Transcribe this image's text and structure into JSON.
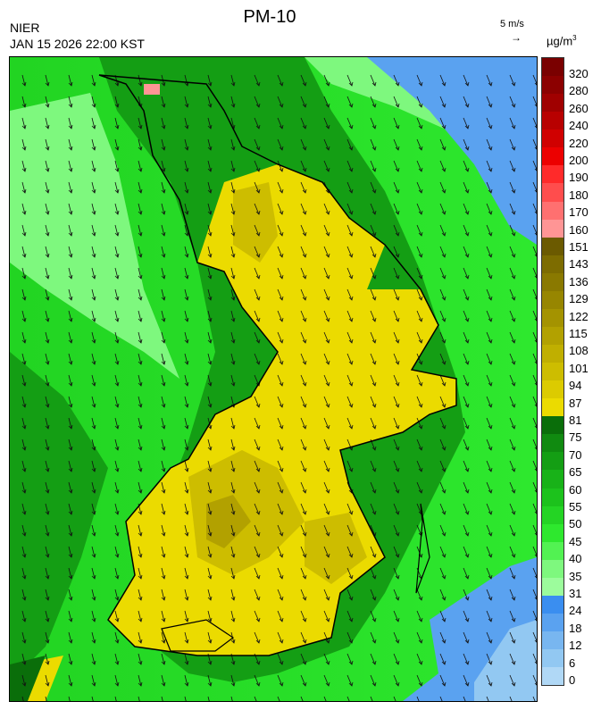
{
  "header": {
    "title": "PM-10",
    "agency": "NIER",
    "timestamp": "JAN 15 2026 22:00 KST",
    "wind_reference": "5 m/s",
    "wind_arrow": "→",
    "unit_base": "µg/m",
    "unit_exp": "3"
  },
  "legend": {
    "labels": [
      "320",
      "280",
      "260",
      "240",
      "220",
      "200",
      "190",
      "180",
      "170",
      "160",
      "151",
      "143",
      "136",
      "129",
      "122",
      "115",
      "108",
      "101",
      "94",
      "87",
      "81",
      "75",
      "70",
      "65",
      "60",
      "55",
      "50",
      "45",
      "40",
      "35",
      "31",
      "24",
      "18",
      "12",
      "6",
      "0"
    ],
    "colors": [
      "#7a0000",
      "#8c0000",
      "#a00000",
      "#b80000",
      "#d00000",
      "#ec0000",
      "#ff2a2a",
      "#ff4d4d",
      "#ff7070",
      "#ff9595",
      "#6b5a00",
      "#7d6c00",
      "#8a7900",
      "#978600",
      "#a49300",
      "#b2a100",
      "#c0af00",
      "#cdbd00",
      "#dccb00",
      "#ebdb00",
      "#0a6e0a",
      "#108a10",
      "#149e14",
      "#18b218",
      "#1cc21c",
      "#24d424",
      "#2ee82e",
      "#52f252",
      "#7ef87e",
      "#9cfc9c",
      "#3a8ef0",
      "#5aa2f0",
      "#78b6f0",
      "#92c8f2",
      "#b0d8f6"
    ]
  },
  "map_colors": {
    "sea_west": "#22d422",
    "sea_mid": "#2ee82e",
    "sea_light": "#7ef87e",
    "sea_dark": "#149e14",
    "sea_darkest": "#0a6e0a",
    "east_blue": "#5aa2f0",
    "east_blue_light": "#92c8f2",
    "land_high": "#cdbd00",
    "land_peak": "#b2a100",
    "land_yellow": "#ebdb00",
    "hotspot": "#ff9595"
  }
}
